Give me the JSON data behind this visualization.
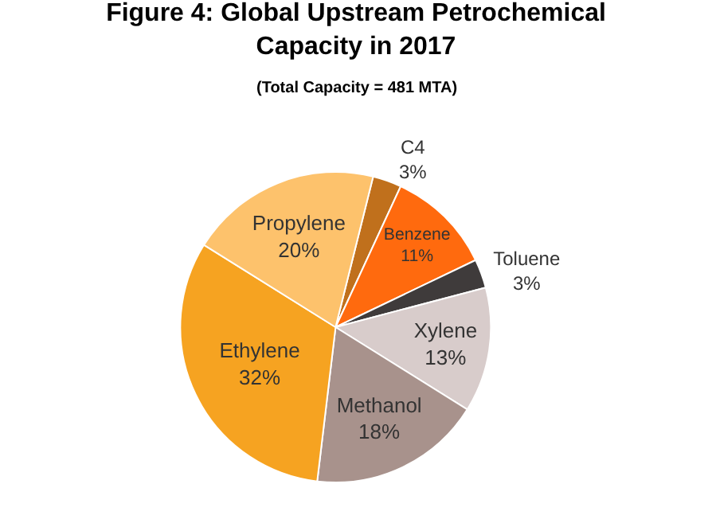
{
  "chart_data": {
    "type": "pie",
    "title": "Figure 4: Global Upstream Petrochemical Capacity in 2017",
    "subtitle": "(Total Capacity = 481 MTA)",
    "categories": [
      "C4",
      "Benzene",
      "Toluene",
      "Xylene",
      "Methanol",
      "Ethylene",
      "Propylene"
    ],
    "values": [
      3,
      11,
      3,
      13,
      18,
      32,
      20
    ],
    "value_labels": [
      "3%",
      "11%",
      "3%",
      "13%",
      "18%",
      "32%",
      "20%"
    ],
    "colors": [
      "#c0701c",
      "#ff6a0e",
      "#3f3b3b",
      "#d8cccb",
      "#a8928c",
      "#f6a321",
      "#fdc26c"
    ],
    "legend": false
  }
}
